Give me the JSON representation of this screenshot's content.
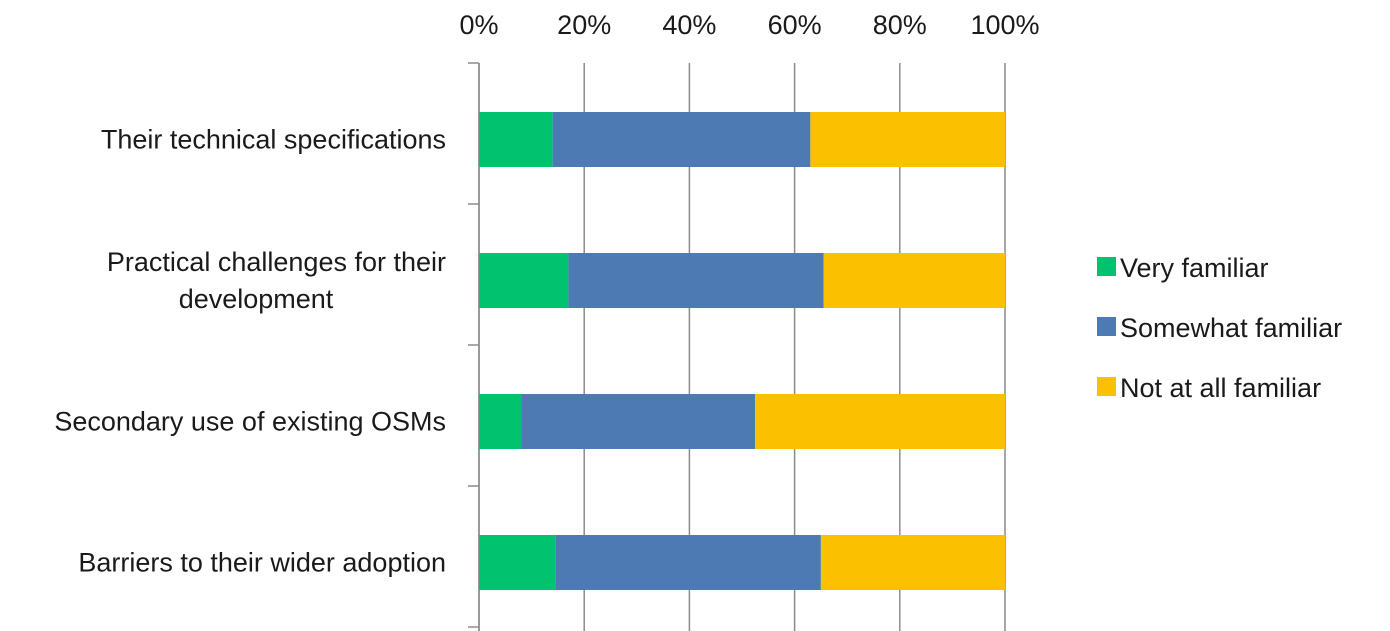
{
  "chart_data": {
    "type": "bar",
    "orientation": "horizontal",
    "stacked": "percent",
    "categories": [
      [
        "Their technical specifications"
      ],
      [
        "Practical challenges for their",
        "development"
      ],
      [
        "Secondary use of existing OSMs"
      ],
      [
        "Barriers to their wider adoption"
      ]
    ],
    "series": [
      {
        "name": "Very familiar",
        "color": "#00C26F",
        "values": [
          14,
          17,
          8,
          14.5
        ]
      },
      {
        "name": "Somewhat familiar",
        "color": "#4E7AB3",
        "values": [
          49,
          48.5,
          44.5,
          50.5
        ]
      },
      {
        "name": "Not at all familiar",
        "color": "#FBC100",
        "values": [
          37,
          34.5,
          47.5,
          35
        ]
      }
    ],
    "x_ticks": [
      "0%",
      "20%",
      "40%",
      "60%",
      "80%",
      "100%"
    ],
    "xlim": [
      0,
      100
    ],
    "x_axis_position": "top",
    "grid": "vertical",
    "legend_position": "right",
    "title": "",
    "xlabel": "",
    "ylabel": ""
  }
}
